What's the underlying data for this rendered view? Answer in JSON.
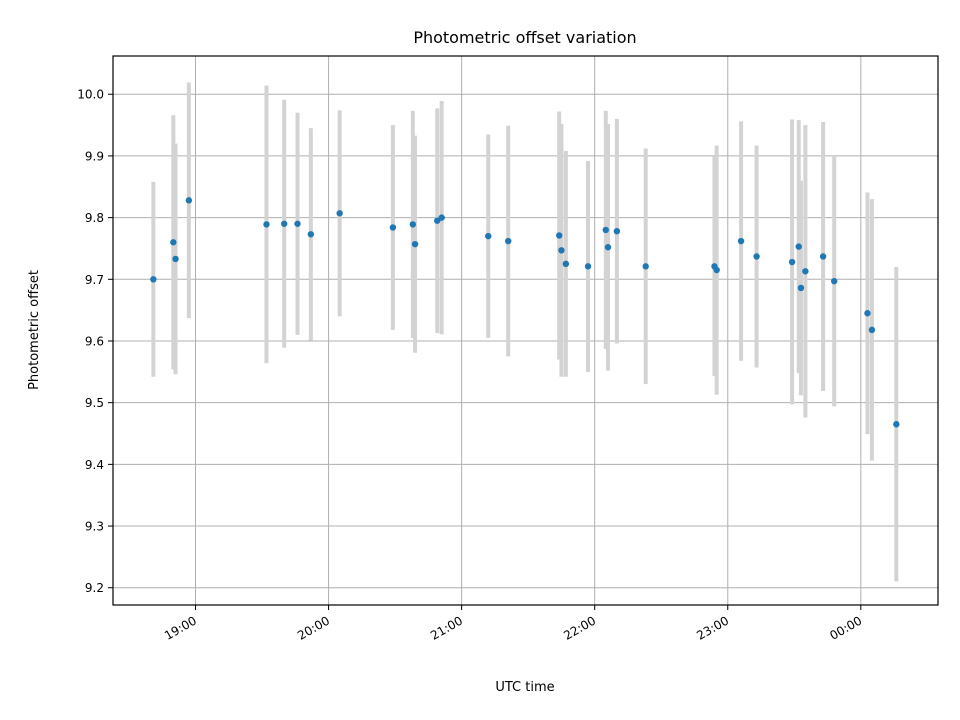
{
  "chart_data": {
    "type": "scatter",
    "title": "Photometric offset variation",
    "xlabel": "UTC time",
    "ylabel": "Photometric offset",
    "x_ticks": [
      "19:00",
      "20:00",
      "21:00",
      "22:00",
      "23:00",
      "00:00"
    ],
    "y_ticks": [
      "9.2",
      "9.3",
      "9.4",
      "9.5",
      "9.6",
      "9.7",
      "9.8",
      "9.9",
      "10.0"
    ],
    "grid": true,
    "colors": {
      "point": "#1f77b4",
      "errorbar": "#d3d3d3",
      "grid": "#b0b0b0"
    },
    "points": [
      {
        "x": "18:41",
        "y": 9.7,
        "err": 0.158
      },
      {
        "x": "18:50",
        "y": 9.76,
        "err": 0.206
      },
      {
        "x": "18:51",
        "y": 9.733,
        "err": 0.187
      },
      {
        "x": "18:57",
        "y": 9.828,
        "err": 0.191
      },
      {
        "x": "19:32",
        "y": 9.789,
        "err": 0.225
      },
      {
        "x": "19:40",
        "y": 9.79,
        "err": 0.201
      },
      {
        "x": "19:46",
        "y": 9.79,
        "err": 0.18
      },
      {
        "x": "19:52",
        "y": 9.773,
        "err": 0.172
      },
      {
        "x": "20:05",
        "y": 9.807,
        "err": 0.167
      },
      {
        "x": "20:29",
        "y": 9.784,
        "err": 0.166
      },
      {
        "x": "20:38",
        "y": 9.789,
        "err": 0.184
      },
      {
        "x": "20:39",
        "y": 9.757,
        "err": 0.176
      },
      {
        "x": "20:49",
        "y": 9.795,
        "err": 0.182
      },
      {
        "x": "20:51",
        "y": 9.8,
        "err": 0.189
      },
      {
        "x": "21:12",
        "y": 9.77,
        "err": 0.165
      },
      {
        "x": "21:21",
        "y": 9.762,
        "err": 0.187
      },
      {
        "x": "21:44",
        "y": 9.771,
        "err": 0.201
      },
      {
        "x": "21:45",
        "y": 9.747,
        "err": 0.205
      },
      {
        "x": "21:47",
        "y": 9.725,
        "err": 0.183
      },
      {
        "x": "21:57",
        "y": 9.721,
        "err": 0.171
      },
      {
        "x": "22:05",
        "y": 9.78,
        "err": 0.193
      },
      {
        "x": "22:06",
        "y": 9.752,
        "err": 0.2
      },
      {
        "x": "22:10",
        "y": 9.778,
        "err": 0.182
      },
      {
        "x": "22:23",
        "y": 9.721,
        "err": 0.191
      },
      {
        "x": "22:54",
        "y": 9.721,
        "err": 0.178
      },
      {
        "x": "22:55",
        "y": 9.715,
        "err": 0.202
      },
      {
        "x": "23:06",
        "y": 9.762,
        "err": 0.194
      },
      {
        "x": "23:13",
        "y": 9.737,
        "err": 0.18
      },
      {
        "x": "23:29",
        "y": 9.728,
        "err": 0.231
      },
      {
        "x": "23:32",
        "y": 9.753,
        "err": 0.205
      },
      {
        "x": "23:33",
        "y": 9.686,
        "err": 0.174
      },
      {
        "x": "23:35",
        "y": 9.713,
        "err": 0.237
      },
      {
        "x": "23:43",
        "y": 9.737,
        "err": 0.218
      },
      {
        "x": "23:48",
        "y": 9.697,
        "err": 0.203
      },
      {
        "x": "00:03",
        "y": 9.645,
        "err": 0.196
      },
      {
        "x": "00:05",
        "y": 9.618,
        "err": 0.212
      },
      {
        "x": "00:16",
        "y": 9.465,
        "err": 0.255
      }
    ]
  }
}
